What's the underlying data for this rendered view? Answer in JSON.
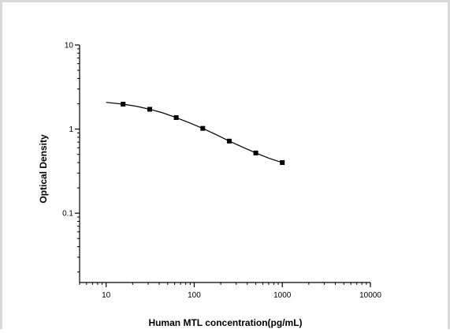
{
  "chart_data": {
    "type": "scatter",
    "title": "",
    "xlabel": "Human MTL concentration(pg/mL)",
    "ylabel": "Optical Density",
    "x_scale": "log",
    "y_scale": "log",
    "xlim": [
      5,
      10000
    ],
    "ylim": [
      0.015,
      10
    ],
    "x_ticks": [
      {
        "value": 10,
        "label": "10"
      },
      {
        "value": 100,
        "label": "100"
      },
      {
        "value": 1000,
        "label": "1000"
      },
      {
        "value": 10000,
        "label": "10000"
      }
    ],
    "y_ticks": [
      {
        "value": 0.1,
        "label": "0.1"
      },
      {
        "value": 1,
        "label": "1"
      },
      {
        "value": 10,
        "label": "10"
      }
    ],
    "grid": false,
    "legend": "none",
    "series": [
      {
        "points": [
          {
            "x": 15.6,
            "y": 1.98
          },
          {
            "x": 31.25,
            "y": 1.72
          },
          {
            "x": 62.5,
            "y": 1.37
          },
          {
            "x": 125,
            "y": 1.02
          },
          {
            "x": 250,
            "y": 0.72
          },
          {
            "x": 500,
            "y": 0.52
          },
          {
            "x": 1000,
            "y": 0.4
          }
        ],
        "curve": [
          {
            "x": 10,
            "y": 2.08
          },
          {
            "x": 15.6,
            "y": 1.98
          },
          {
            "x": 22,
            "y": 1.87
          },
          {
            "x": 31.25,
            "y": 1.72
          },
          {
            "x": 44,
            "y": 1.56
          },
          {
            "x": 62.5,
            "y": 1.37
          },
          {
            "x": 88,
            "y": 1.19
          },
          {
            "x": 125,
            "y": 1.02
          },
          {
            "x": 177,
            "y": 0.86
          },
          {
            "x": 250,
            "y": 0.72
          },
          {
            "x": 354,
            "y": 0.61
          },
          {
            "x": 500,
            "y": 0.52
          },
          {
            "x": 707,
            "y": 0.45
          },
          {
            "x": 1000,
            "y": 0.4
          }
        ]
      }
    ],
    "colors": {
      "line": "#000000",
      "marker": "#000000",
      "background": "#ffffff",
      "frame": "#d9d9d9"
    }
  }
}
